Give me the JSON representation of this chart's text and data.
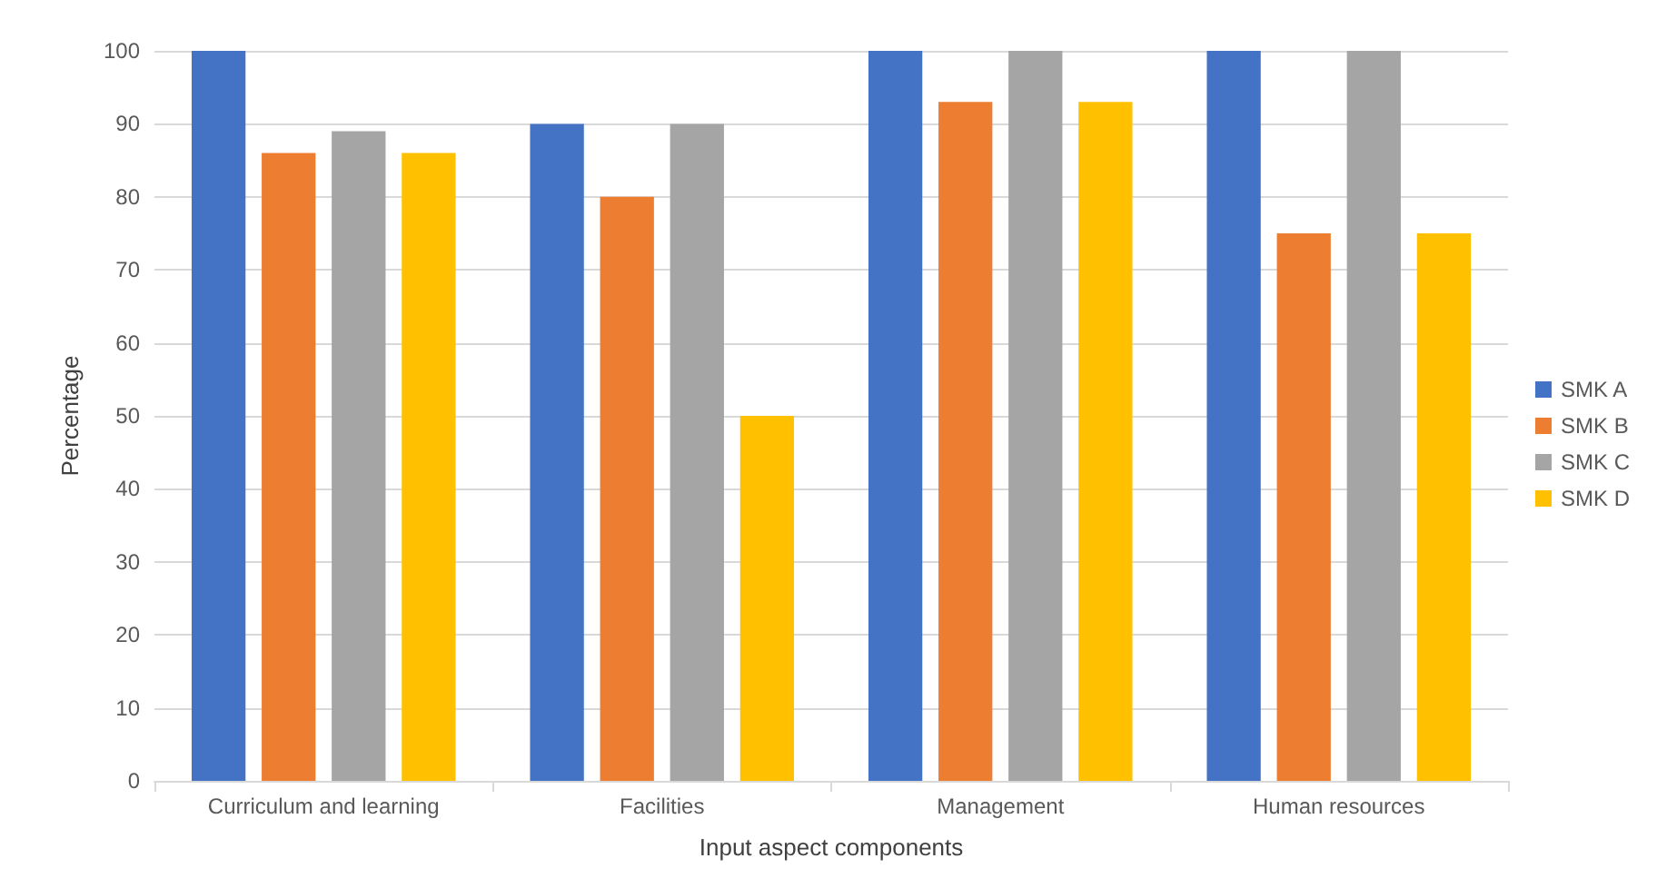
{
  "chart_data": {
    "type": "bar",
    "xlabel": "Input aspect components",
    "ylabel": "Percentage",
    "categories": [
      "Curriculum and learning",
      "Facilities",
      "Management",
      "Human resources"
    ],
    "series": [
      {
        "name": "SMK A",
        "color": "#4472c4",
        "values": [
          100,
          90,
          100,
          100
        ]
      },
      {
        "name": "SMK B",
        "color": "#ed7d31",
        "values": [
          86,
          80,
          93,
          75
        ]
      },
      {
        "name": "SMK C",
        "color": "#a5a5a5",
        "values": [
          89,
          90,
          100,
          100
        ]
      },
      {
        "name": "SMK D",
        "color": "#ffc000",
        "values": [
          86,
          50,
          93,
          75
        ]
      }
    ],
    "ylim": [
      0,
      100
    ],
    "yticks": [
      0,
      10,
      20,
      30,
      40,
      50,
      60,
      70,
      80,
      90,
      100
    ],
    "grid": "y",
    "legend": "right"
  }
}
